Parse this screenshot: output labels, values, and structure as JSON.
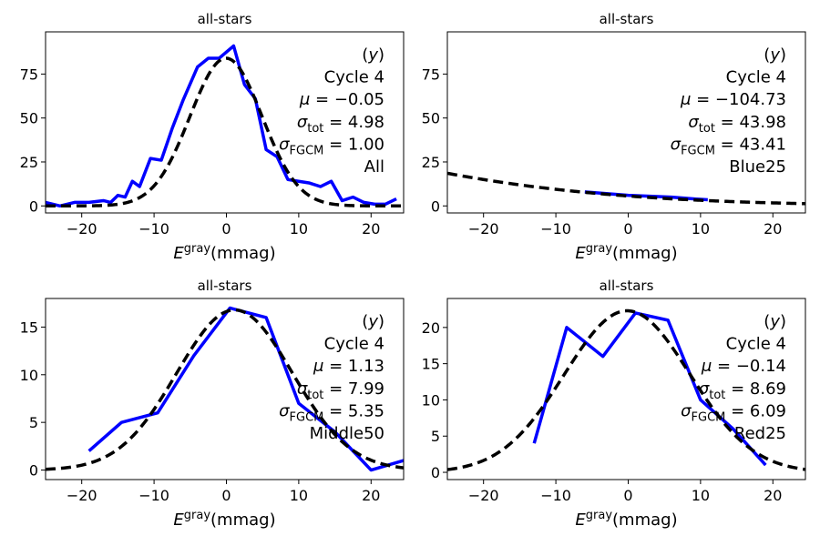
{
  "chart_data": [
    {
      "type": "line",
      "title": "all-stars",
      "xlabel_main": "E",
      "xlabel_sup": "gray",
      "xlabel_unit": "(mmag)",
      "xlim": [
        -25,
        24.5
      ],
      "ylim": [
        -4,
        99
      ],
      "xticks": [
        -20,
        -10,
        0,
        10,
        20
      ],
      "xtick_labels": [
        "−20",
        "−10",
        "0",
        "10",
        "20"
      ],
      "yticks": [
        0,
        25,
        50,
        75
      ],
      "ytick_labels": [
        "0",
        "25",
        "50",
        "75"
      ],
      "annotation": [
        "(y)",
        "Cycle 4",
        "μ = −0.05",
        "σtot = 4.98",
        "σFGCM = 1.00",
        "All"
      ],
      "annotation_parts": {
        "band": "(y)",
        "cycle": "Cycle 4",
        "mu": "−0.05",
        "sigma_tot": "4.98",
        "sigma_fgcm": "1.00",
        "subset": "All"
      },
      "series": [
        {
          "style": "histogram",
          "color": "#0000ff",
          "x": [
            -25,
            -23,
            -21,
            -19,
            -17,
            -16,
            -15,
            -14,
            -13,
            -12,
            -10.5,
            -9,
            -7.5,
            -6,
            -4,
            -2.5,
            -1,
            1,
            2.5,
            4,
            5.5,
            7,
            8.5,
            10,
            11.5,
            13,
            14.5,
            16,
            17.5,
            19,
            20.5,
            22,
            23.5
          ],
          "y": [
            2,
            0,
            2,
            2,
            3,
            2,
            6,
            5,
            14,
            11,
            27,
            26,
            44,
            60,
            79,
            84,
            84,
            91,
            69,
            61,
            32,
            28,
            15,
            14,
            13,
            11,
            14,
            3,
            5,
            2,
            1,
            1,
            4
          ]
        },
        {
          "style": "gaussian",
          "color": "#000000",
          "mu": -0.05,
          "sigma": 4.98,
          "amplitude": 84
        }
      ]
    },
    {
      "type": "line",
      "title": "all-stars",
      "xlabel_main": "E",
      "xlabel_sup": "gray",
      "xlabel_unit": "(mmag)",
      "xlim": [
        -25,
        24.5
      ],
      "ylim": [
        -4,
        99
      ],
      "xticks": [
        -20,
        -10,
        0,
        10,
        20
      ],
      "xtick_labels": [
        "−20",
        "−10",
        "0",
        "10",
        "20"
      ],
      "yticks": [
        0,
        25,
        50,
        75
      ],
      "ytick_labels": [
        "0",
        "25",
        "50",
        "75"
      ],
      "annotation": [
        "(y)",
        "Cycle 4",
        "μ = −104.73",
        "σtot = 43.98",
        "σFGCM = 43.41",
        "Blue25"
      ],
      "annotation_parts": {
        "band": "(y)",
        "cycle": "Cycle 4",
        "mu": "−104.73",
        "sigma_tot": "43.98",
        "sigma_fgcm": "43.41",
        "subset": "Blue25"
      },
      "series": [
        {
          "style": "histogram",
          "color": "#0000ff",
          "x": [
            -6,
            -3,
            0,
            3,
            6,
            9,
            11
          ],
          "y": [
            8,
            7,
            6,
            5.5,
            5,
            4,
            3.5
          ]
        },
        {
          "style": "gaussian",
          "color": "#000000",
          "mu": -104.73,
          "sigma": 43.98,
          "amplitude": 96
        }
      ]
    },
    {
      "type": "line",
      "title": "all-stars",
      "xlabel_main": "E",
      "xlabel_sup": "gray",
      "xlabel_unit": "(mmag)",
      "xlim": [
        -25,
        24.5
      ],
      "ylim": [
        -1,
        18
      ],
      "xticks": [
        -20,
        -10,
        0,
        10,
        20
      ],
      "xtick_labels": [
        "−20",
        "−10",
        "0",
        "10",
        "20"
      ],
      "yticks": [
        0,
        5,
        10,
        15
      ],
      "ytick_labels": [
        "0",
        "5",
        "10",
        "15"
      ],
      "annotation": [
        "(y)",
        "Cycle 4",
        "μ = 1.13",
        "σtot = 7.99",
        "σFGCM = 5.35",
        "Middle50"
      ],
      "annotation_parts": {
        "band": "(y)",
        "cycle": "Cycle 4",
        "mu": "1.13",
        "sigma_tot": "7.99",
        "sigma_fgcm": "5.35",
        "subset": "Middle50"
      },
      "series": [
        {
          "style": "histogram",
          "color": "#0000ff",
          "x": [
            -19,
            -14.5,
            -9.5,
            -4.5,
            0.5,
            5.5,
            10,
            15,
            20,
            24.5
          ],
          "y": [
            2,
            5,
            6,
            12,
            17,
            16,
            7,
            4,
            0,
            1
          ]
        },
        {
          "style": "gaussian",
          "color": "#000000",
          "mu": 1.13,
          "sigma": 7.99,
          "amplitude": 16.8
        }
      ]
    },
    {
      "type": "line",
      "title": "all-stars",
      "xlabel_main": "E",
      "xlabel_sup": "gray",
      "xlabel_unit": "(mmag)",
      "xlim": [
        -25,
        24.5
      ],
      "ylim": [
        -1,
        24
      ],
      "xticks": [
        -20,
        -10,
        0,
        10,
        20
      ],
      "xtick_labels": [
        "−20",
        "−10",
        "0",
        "10",
        "20"
      ],
      "yticks": [
        0,
        5,
        10,
        15,
        20
      ],
      "ytick_labels": [
        "0",
        "5",
        "10",
        "15",
        "20"
      ],
      "annotation": [
        "(y)",
        "Cycle 4",
        "μ = −0.14",
        "σtot = 8.69",
        "σFGCM = 6.09",
        "Red25"
      ],
      "annotation_parts": {
        "band": "(y)",
        "cycle": "Cycle 4",
        "mu": "−0.14",
        "sigma_tot": "8.69",
        "sigma_fgcm": "6.09",
        "subset": "Red25"
      },
      "series": [
        {
          "style": "histogram",
          "color": "#0000ff",
          "x": [
            -13,
            -8.5,
            -3.5,
            1,
            5.5,
            10,
            14.5,
            19
          ],
          "y": [
            4,
            20,
            16,
            22,
            21,
            10,
            6,
            1
          ]
        },
        {
          "style": "gaussian",
          "color": "#000000",
          "mu": -0.14,
          "sigma": 8.69,
          "amplitude": 22.3
        }
      ]
    }
  ]
}
